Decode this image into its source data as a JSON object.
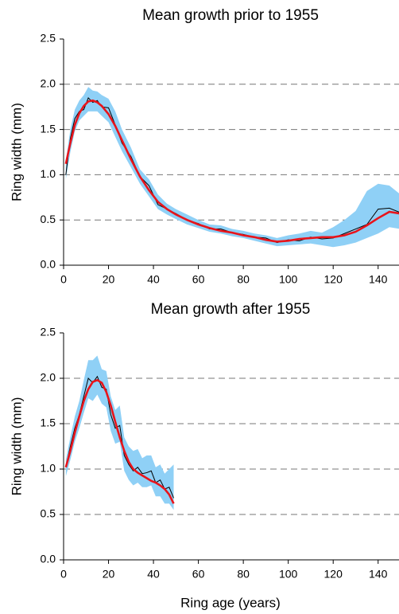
{
  "chart_data": [
    {
      "type": "line",
      "title": "Mean growth prior to 1955",
      "ylabel": "Ring width (mm)",
      "x": [
        1,
        3,
        5,
        7,
        9,
        11,
        13,
        15,
        17,
        20,
        23,
        26,
        30,
        34,
        38,
        42,
        46,
        50,
        55,
        60,
        65,
        70,
        75,
        80,
        85,
        90,
        95,
        100,
        105,
        110,
        115,
        120,
        125,
        130,
        135,
        140,
        145,
        150
      ],
      "mean_values": [
        1.0,
        1.4,
        1.62,
        1.7,
        1.72,
        1.85,
        1.8,
        1.82,
        1.75,
        1.74,
        1.55,
        1.35,
        1.2,
        0.98,
        0.88,
        0.67,
        0.62,
        0.57,
        0.5,
        0.46,
        0.4,
        0.4,
        0.36,
        0.34,
        0.31,
        0.3,
        0.25,
        0.28,
        0.27,
        0.31,
        0.29,
        0.3,
        0.35,
        0.4,
        0.45,
        0.62,
        0.63,
        0.58
      ],
      "smooth_values": [
        1.12,
        1.35,
        1.55,
        1.68,
        1.76,
        1.81,
        1.82,
        1.8,
        1.76,
        1.67,
        1.54,
        1.38,
        1.17,
        0.98,
        0.83,
        0.7,
        0.62,
        0.56,
        0.5,
        0.45,
        0.41,
        0.38,
        0.36,
        0.33,
        0.31,
        0.28,
        0.26,
        0.27,
        0.29,
        0.3,
        0.31,
        0.31,
        0.33,
        0.37,
        0.44,
        0.52,
        0.59,
        0.57
      ],
      "band_low": [
        0.95,
        1.25,
        1.48,
        1.6,
        1.65,
        1.7,
        1.7,
        1.7,
        1.65,
        1.58,
        1.42,
        1.26,
        1.08,
        0.9,
        0.76,
        0.62,
        0.56,
        0.51,
        0.45,
        0.41,
        0.37,
        0.35,
        0.32,
        0.3,
        0.27,
        0.24,
        0.21,
        0.22,
        0.23,
        0.24,
        0.22,
        0.2,
        0.22,
        0.25,
        0.3,
        0.35,
        0.42,
        0.4
      ],
      "band_high": [
        1.15,
        1.5,
        1.72,
        1.82,
        1.88,
        1.97,
        1.93,
        1.92,
        1.88,
        1.84,
        1.7,
        1.5,
        1.3,
        1.06,
        0.95,
        0.78,
        0.68,
        0.62,
        0.56,
        0.5,
        0.45,
        0.44,
        0.4,
        0.38,
        0.35,
        0.33,
        0.3,
        0.33,
        0.35,
        0.38,
        0.36,
        0.42,
        0.5,
        0.6,
        0.82,
        0.9,
        0.88,
        0.78
      ],
      "mean_color": "#000000",
      "smooth_color": "#e8141b",
      "band_color": "#8fd0f6",
      "xlim": [
        0,
        150
      ],
      "xticks": [
        0,
        20,
        40,
        60,
        80,
        100,
        120,
        140
      ],
      "ylim": [
        0,
        2.5
      ],
      "yticks": [
        {
          "value": 0,
          "label": "0.0"
        },
        {
          "value": 0.5,
          "label": "0.5"
        },
        {
          "value": 1,
          "label": "1.0"
        },
        {
          "value": 1.5,
          "label": "1.5"
        },
        {
          "value": 2,
          "label": "2.0"
        },
        {
          "value": 2.5,
          "label": "2.5"
        }
      ],
      "grid": true
    },
    {
      "type": "line",
      "title": "Mean growth after 1955",
      "ylabel": "Ring width (mm)",
      "xlabel": "Ring age (years)",
      "x": [
        1,
        3,
        5,
        7,
        9,
        11,
        13,
        15,
        17,
        19,
        21,
        23,
        25,
        27,
        29,
        31,
        33,
        35,
        37,
        39,
        41,
        43,
        45,
        47,
        49
      ],
      "mean_values": [
        1.02,
        1.25,
        1.45,
        1.6,
        1.8,
        2.0,
        1.95,
        2.02,
        1.9,
        1.88,
        1.6,
        1.45,
        1.48,
        1.15,
        1.05,
        0.98,
        1.02,
        0.95,
        0.96,
        0.98,
        0.85,
        0.88,
        0.78,
        0.8,
        0.68
      ],
      "smooth_values": [
        1.02,
        1.2,
        1.4,
        1.58,
        1.75,
        1.88,
        1.96,
        1.98,
        1.95,
        1.85,
        1.7,
        1.52,
        1.35,
        1.2,
        1.08,
        1.0,
        0.96,
        0.93,
        0.9,
        0.87,
        0.85,
        0.82,
        0.78,
        0.72,
        0.62
      ],
      "band_low": [
        0.92,
        1.1,
        1.3,
        1.45,
        1.62,
        1.78,
        1.75,
        1.82,
        1.72,
        1.68,
        1.42,
        1.28,
        1.3,
        0.98,
        0.88,
        0.82,
        0.85,
        0.8,
        0.8,
        0.82,
        0.7,
        0.7,
        0.62,
        0.62,
        0.55
      ],
      "band_high": [
        1.1,
        1.35,
        1.58,
        1.75,
        1.98,
        2.2,
        2.2,
        2.25,
        2.1,
        2.08,
        1.8,
        1.65,
        1.7,
        1.35,
        1.25,
        1.2,
        1.22,
        1.12,
        1.15,
        1.15,
        1.02,
        1.05,
        0.95,
        1.0,
        1.05
      ],
      "mean_color": "#000000",
      "smooth_color": "#e8141b",
      "band_color": "#8fd0f6",
      "xlim": [
        0,
        150
      ],
      "xticks": [
        0,
        20,
        40,
        60,
        80,
        100,
        120,
        140
      ],
      "ylim": [
        0,
        2.5
      ],
      "yticks": [
        {
          "value": 0,
          "label": "0.0"
        },
        {
          "value": 0.5,
          "label": "0.5"
        },
        {
          "value": 1,
          "label": "1.0"
        },
        {
          "value": 1.5,
          "label": "1.5"
        },
        {
          "value": 2,
          "label": "2.0"
        },
        {
          "value": 2.5,
          "label": "2.5"
        }
      ],
      "grid": true
    }
  ]
}
